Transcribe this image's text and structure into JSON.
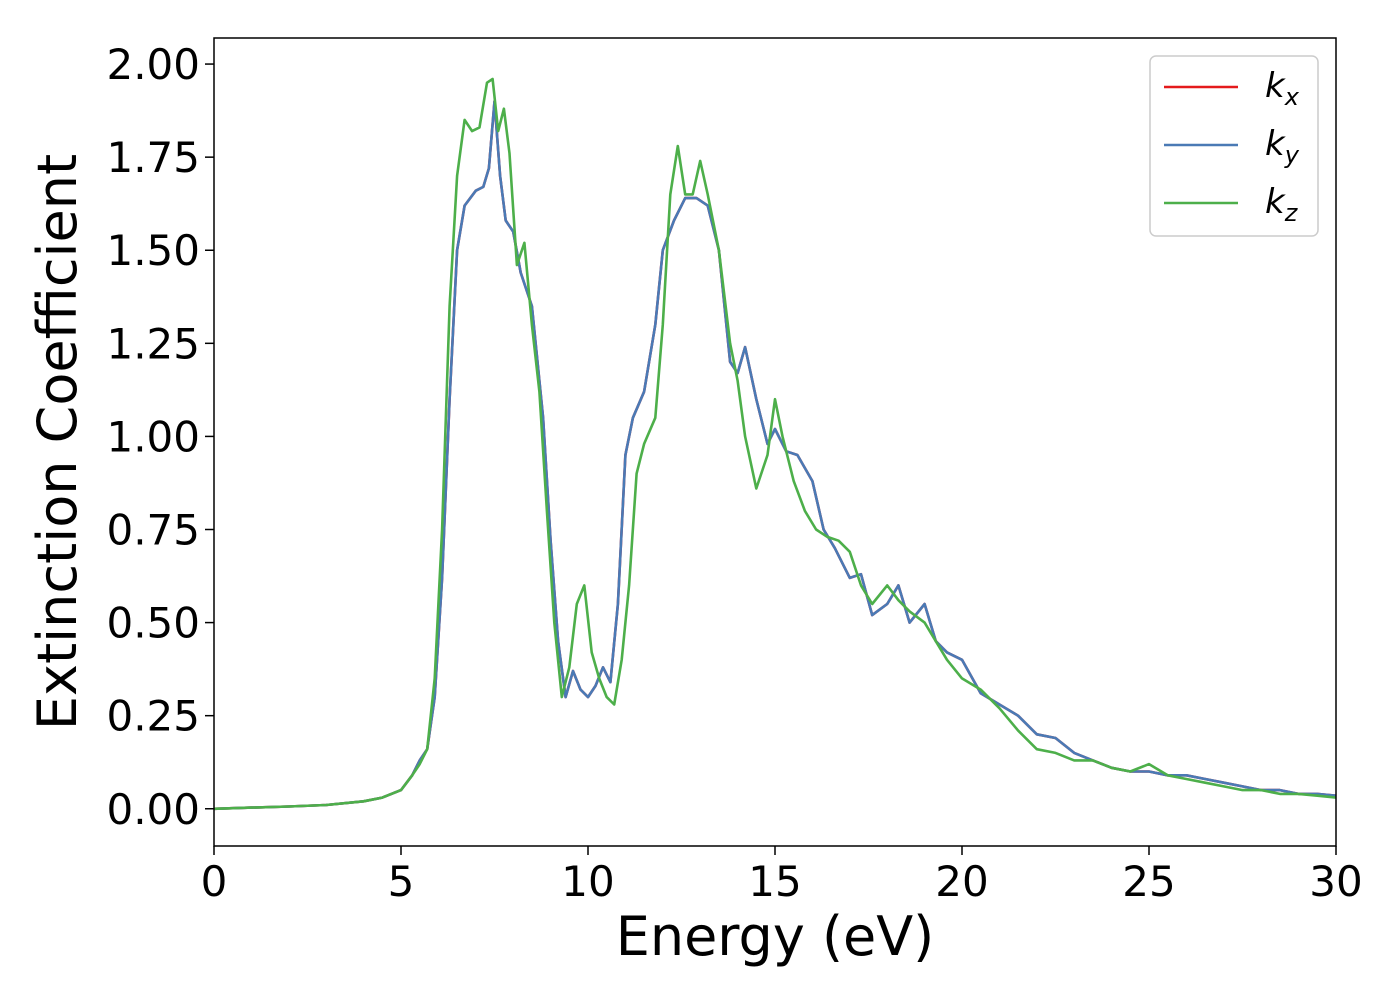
{
  "chart_data": {
    "type": "line",
    "xlabel": "Energy (eV)",
    "ylabel": "Extinction Coefficient",
    "xlim": [
      0,
      30
    ],
    "ylim": [
      -0.1,
      2.07
    ],
    "x_ticks": [
      0,
      5,
      10,
      15,
      20,
      25,
      30
    ],
    "x_tick_labels": [
      "0",
      "5",
      "10",
      "15",
      "20",
      "25",
      "30"
    ],
    "y_ticks": [
      0,
      0.25,
      0.5,
      0.75,
      1.0,
      1.25,
      1.5,
      1.75,
      2.0
    ],
    "y_tick_labels": [
      "0.00",
      "0.25",
      "0.50",
      "0.75",
      "1.00",
      "1.25",
      "1.50",
      "1.75",
      "2.00"
    ],
    "grid": false,
    "legend_position": "top-right",
    "series": [
      {
        "name": "k_x",
        "label_main": "k",
        "label_sub": "x",
        "color": "#e41a1c",
        "x": [
          0,
          1,
          2,
          3,
          4,
          4.5,
          5,
          5.3,
          5.5,
          5.7,
          5.9,
          6.1,
          6.3,
          6.5,
          6.7,
          7,
          7.2,
          7.35,
          7.5,
          7.65,
          7.8,
          8,
          8.2,
          8.5,
          8.8,
          9,
          9.2,
          9.4,
          9.6,
          9.8,
          10,
          10.2,
          10.4,
          10.6,
          10.8,
          11,
          11.2,
          11.5,
          11.8,
          12,
          12.3,
          12.6,
          12.9,
          13.2,
          13.5,
          13.8,
          14,
          14.2,
          14.5,
          14.8,
          15,
          15.3,
          15.6,
          16,
          16.3,
          16.6,
          17,
          17.3,
          17.6,
          18,
          18.3,
          18.6,
          19,
          19.3,
          19.6,
          20,
          20.5,
          21,
          21.5,
          22,
          22.5,
          23,
          23.5,
          24,
          24.5,
          25,
          25.5,
          26,
          26.5,
          27,
          27.5,
          28,
          28.5,
          29,
          29.5,
          30
        ],
        "y": [
          0,
          0.003,
          0.006,
          0.01,
          0.02,
          0.03,
          0.05,
          0.09,
          0.13,
          0.16,
          0.3,
          0.62,
          1.1,
          1.5,
          1.62,
          1.66,
          1.67,
          1.72,
          1.9,
          1.7,
          1.58,
          1.55,
          1.44,
          1.35,
          1.05,
          0.72,
          0.45,
          0.3,
          0.37,
          0.32,
          0.3,
          0.33,
          0.38,
          0.34,
          0.55,
          0.95,
          1.05,
          1.12,
          1.3,
          1.5,
          1.58,
          1.64,
          1.64,
          1.62,
          1.5,
          1.2,
          1.17,
          1.24,
          1.1,
          0.98,
          1.02,
          0.96,
          0.95,
          0.88,
          0.75,
          0.7,
          0.62,
          0.63,
          0.52,
          0.55,
          0.6,
          0.5,
          0.55,
          0.45,
          0.42,
          0.4,
          0.31,
          0.28,
          0.25,
          0.2,
          0.19,
          0.15,
          0.13,
          0.11,
          0.1,
          0.1,
          0.09,
          0.09,
          0.08,
          0.07,
          0.06,
          0.05,
          0.05,
          0.04,
          0.04,
          0.035
        ]
      },
      {
        "name": "k_y",
        "label_main": "k",
        "label_sub": "y",
        "color": "#4a7ab5",
        "x": [
          0,
          1,
          2,
          3,
          4,
          4.5,
          5,
          5.3,
          5.5,
          5.7,
          5.9,
          6.1,
          6.3,
          6.5,
          6.7,
          7,
          7.2,
          7.35,
          7.5,
          7.65,
          7.8,
          8,
          8.2,
          8.5,
          8.8,
          9,
          9.2,
          9.4,
          9.6,
          9.8,
          10,
          10.2,
          10.4,
          10.6,
          10.8,
          11,
          11.2,
          11.5,
          11.8,
          12,
          12.3,
          12.6,
          12.9,
          13.2,
          13.5,
          13.8,
          14,
          14.2,
          14.5,
          14.8,
          15,
          15.3,
          15.6,
          16,
          16.3,
          16.6,
          17,
          17.3,
          17.6,
          18,
          18.3,
          18.6,
          19,
          19.3,
          19.6,
          20,
          20.5,
          21,
          21.5,
          22,
          22.5,
          23,
          23.5,
          24,
          24.5,
          25,
          25.5,
          26,
          26.5,
          27,
          27.5,
          28,
          28.5,
          29,
          29.5,
          30
        ],
        "y": [
          0,
          0.003,
          0.006,
          0.01,
          0.02,
          0.03,
          0.05,
          0.09,
          0.13,
          0.16,
          0.3,
          0.62,
          1.1,
          1.5,
          1.62,
          1.66,
          1.67,
          1.72,
          1.9,
          1.7,
          1.58,
          1.55,
          1.44,
          1.35,
          1.05,
          0.72,
          0.45,
          0.3,
          0.37,
          0.32,
          0.3,
          0.33,
          0.38,
          0.34,
          0.55,
          0.95,
          1.05,
          1.12,
          1.3,
          1.5,
          1.58,
          1.64,
          1.64,
          1.62,
          1.5,
          1.2,
          1.17,
          1.24,
          1.1,
          0.98,
          1.02,
          0.96,
          0.95,
          0.88,
          0.75,
          0.7,
          0.62,
          0.63,
          0.52,
          0.55,
          0.6,
          0.5,
          0.55,
          0.45,
          0.42,
          0.4,
          0.31,
          0.28,
          0.25,
          0.2,
          0.19,
          0.15,
          0.13,
          0.11,
          0.1,
          0.1,
          0.09,
          0.09,
          0.08,
          0.07,
          0.06,
          0.05,
          0.05,
          0.04,
          0.04,
          0.035
        ]
      },
      {
        "name": "k_z",
        "label_main": "k",
        "label_sub": "z",
        "color": "#4daf4a",
        "x": [
          0,
          1,
          2,
          3,
          4,
          4.5,
          5,
          5.3,
          5.5,
          5.7,
          5.9,
          6.1,
          6.3,
          6.5,
          6.7,
          6.9,
          7.1,
          7.3,
          7.45,
          7.6,
          7.75,
          7.9,
          8.1,
          8.3,
          8.5,
          8.7,
          8.9,
          9.1,
          9.3,
          9.5,
          9.7,
          9.9,
          10.1,
          10.3,
          10.5,
          10.7,
          10.9,
          11.1,
          11.3,
          11.5,
          11.8,
          12,
          12.2,
          12.4,
          12.6,
          12.8,
          13,
          13.2,
          13.5,
          13.8,
          14,
          14.2,
          14.5,
          14.8,
          15,
          15.2,
          15.5,
          15.8,
          16.1,
          16.4,
          16.7,
          17,
          17.3,
          17.6,
          18,
          18.3,
          18.6,
          19,
          19.3,
          19.6,
          20,
          20.5,
          21,
          21.5,
          22,
          22.5,
          23,
          23.5,
          24,
          24.5,
          25,
          25.5,
          26,
          26.5,
          27,
          27.5,
          28,
          28.5,
          29,
          29.5,
          30
        ],
        "y": [
          0,
          0.003,
          0.006,
          0.01,
          0.02,
          0.03,
          0.05,
          0.09,
          0.12,
          0.16,
          0.35,
          0.75,
          1.35,
          1.7,
          1.85,
          1.82,
          1.83,
          1.95,
          1.96,
          1.82,
          1.88,
          1.76,
          1.46,
          1.52,
          1.3,
          1.12,
          0.8,
          0.5,
          0.3,
          0.38,
          0.55,
          0.6,
          0.42,
          0.35,
          0.3,
          0.28,
          0.4,
          0.6,
          0.9,
          0.98,
          1.05,
          1.3,
          1.65,
          1.78,
          1.65,
          1.65,
          1.74,
          1.65,
          1.5,
          1.25,
          1.15,
          1.0,
          0.86,
          0.95,
          1.1,
          1.0,
          0.88,
          0.8,
          0.75,
          0.73,
          0.72,
          0.69,
          0.6,
          0.55,
          0.6,
          0.56,
          0.53,
          0.5,
          0.45,
          0.4,
          0.35,
          0.32,
          0.27,
          0.21,
          0.16,
          0.15,
          0.13,
          0.13,
          0.11,
          0.1,
          0.12,
          0.09,
          0.08,
          0.07,
          0.06,
          0.05,
          0.05,
          0.04,
          0.04,
          0.035,
          0.03
        ]
      }
    ]
  }
}
